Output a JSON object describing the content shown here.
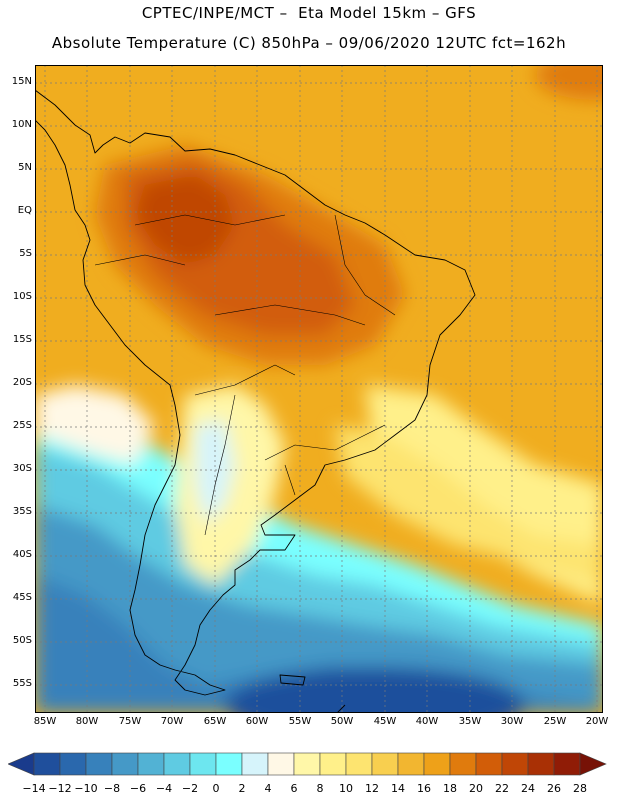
{
  "header": {
    "line1": "CPTEC/INPE/MCT –  Eta Model 15km – GFS",
    "line2": "Absolute Temperature (C) 850hPa – 09/06/2020 12UTC fct=162h"
  },
  "map": {
    "region": "South America",
    "lat_labels": [
      "15N",
      "10N",
      "5N",
      "EQ",
      "5S",
      "10S",
      "15S",
      "20S",
      "25S",
      "30S",
      "35S",
      "40S",
      "45S",
      "50S",
      "55S"
    ],
    "lon_labels": [
      "85W",
      "80W",
      "75W",
      "70W",
      "65W",
      "60W",
      "55W",
      "50W",
      "45W",
      "40W",
      "35W",
      "30W",
      "25W",
      "20W"
    ]
  },
  "legend": {
    "unit": "C",
    "labels": [
      "-14",
      "-12",
      "-10",
      "-8",
      "-6",
      "-4",
      "-2",
      "0",
      "2",
      "4",
      "6",
      "8",
      "10",
      "12",
      "14",
      "16",
      "18",
      "20",
      "22",
      "24",
      "26",
      "28"
    ],
    "colors": [
      "#1a3b8c",
      "#1f4f9c",
      "#2a68ad",
      "#3781bb",
      "#4599c7",
      "#52b2d4",
      "#5fcbe2",
      "#6de6ef",
      "#7affff",
      "#d6f4fb",
      "#fff8e6",
      "#fff7a8",
      "#fff08a",
      "#fde470",
      "#f8cf4f",
      "#f2b630",
      "#eea119",
      "#e07b0d",
      "#d25d08",
      "#c04606",
      "#a93005",
      "#901c06",
      "#771206"
    ]
  }
}
